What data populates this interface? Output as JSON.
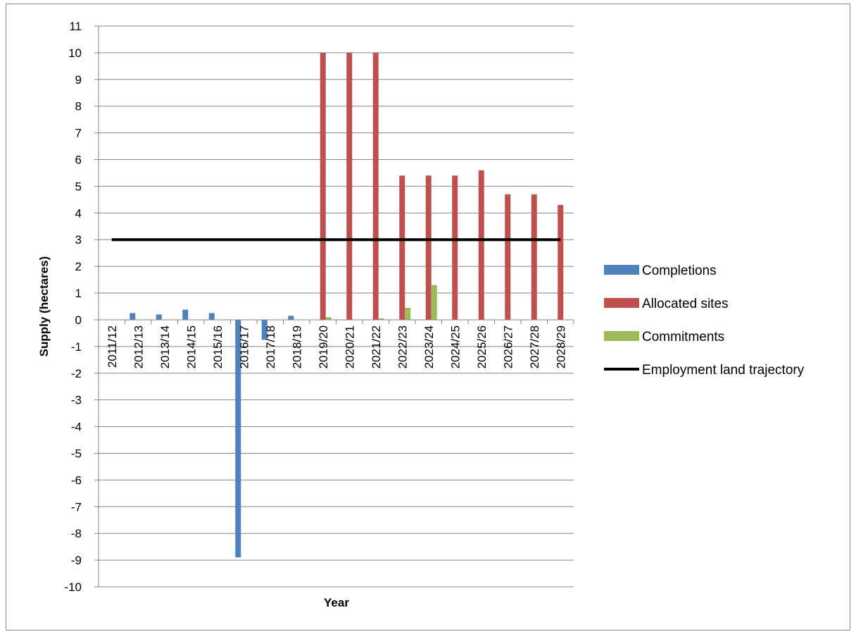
{
  "chart_data": {
    "type": "bar",
    "title": "",
    "xlabel": "Year",
    "ylabel": "Supply (hectares)",
    "ylim": [
      -10,
      11
    ],
    "y_ticks": [
      11,
      10,
      9,
      8,
      7,
      6,
      5,
      4,
      3,
      2,
      1,
      0,
      -1,
      -2,
      -3,
      -4,
      -5,
      -6,
      -7,
      -8,
      -9,
      -10
    ],
    "grid": true,
    "legend_position": "right",
    "categories": [
      "2011/12",
      "2012/13",
      "2013/14",
      "2014/15",
      "2015/16",
      "2016/17",
      "2017/18",
      "2018/19",
      "2019/20",
      "2020/21",
      "2021/22",
      "2022/23",
      "2023/24",
      "2024/25",
      "2025/26",
      "2026/27",
      "2027/28",
      "2028/29"
    ],
    "series": [
      {
        "name": "Completions",
        "type": "bar",
        "color": "#4f81bd",
        "values": [
          0,
          0.25,
          0.2,
          0.38,
          0.25,
          -8.9,
          -0.75,
          0.15,
          0,
          0,
          0,
          0,
          0,
          0,
          0,
          0,
          0,
          0
        ]
      },
      {
        "name": "Allocated sites",
        "type": "bar",
        "color": "#c0504d",
        "values": [
          0,
          0,
          0,
          0,
          0,
          0,
          0,
          0,
          10,
          10,
          10,
          5.4,
          5.4,
          5.4,
          5.6,
          4.7,
          4.7,
          4.3
        ]
      },
      {
        "name": "Commitments",
        "type": "bar",
        "color": "#9bbb59",
        "values": [
          0,
          0,
          0,
          0,
          0,
          0,
          0,
          0,
          0.1,
          0,
          0.05,
          0.45,
          1.3,
          0,
          0,
          0,
          0,
          0
        ]
      },
      {
        "name": "Employment land trajectory",
        "type": "line",
        "color": "#000000",
        "values": [
          3,
          3,
          3,
          3,
          3,
          3,
          3,
          3,
          3,
          3,
          3,
          3,
          3,
          3,
          3,
          3,
          3,
          3
        ]
      }
    ]
  }
}
